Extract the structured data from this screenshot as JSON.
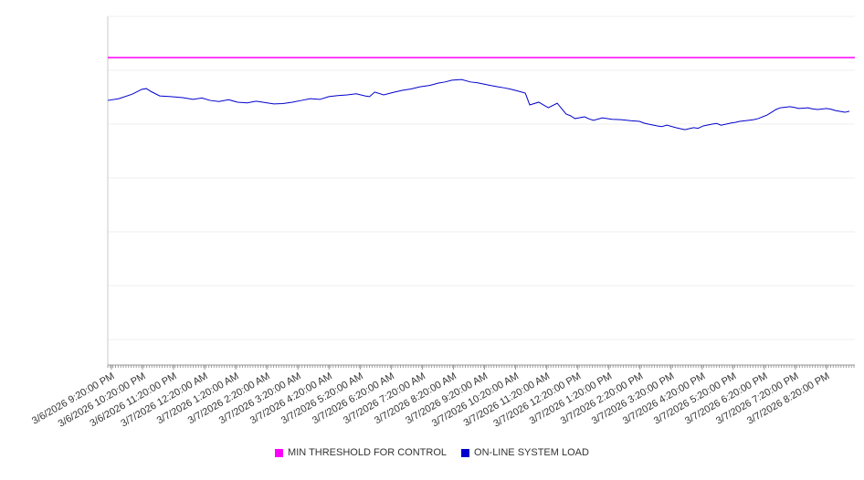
{
  "chart": {
    "background": "#ffffff",
    "axis_color": "#9a9a9a",
    "y_axis_color": "#c8c8c8",
    "grid_color": "#efefef",
    "label_color": "#333333"
  },
  "chart_data": {
    "type": "line",
    "title": "",
    "xlabel": "",
    "ylabel": "",
    "ylim": [
      0,
      100
    ],
    "grid": "horizontal",
    "legend_position": "bottom",
    "categories": [
      "3/6/2026 9:20:00 PM",
      "3/6/2026 10:20:00 PM",
      "3/6/2026 11:20:00 PM",
      "3/7/2026 12:20:00 AM",
      "3/7/2026 1:20:00 AM",
      "3/7/2026 2:20:00 AM",
      "3/7/2026 3:20:00 AM",
      "3/7/2026 4:20:00 AM",
      "3/7/2026 5:20:00 AM",
      "3/7/2026 6:20:00 AM",
      "3/7/2026 7:20:00 AM",
      "3/7/2026 8:20:00 AM",
      "3/7/2026 9:20:00 AM",
      "3/7/2026 10:20:00 AM",
      "3/7/2026 11:20:00 AM",
      "3/7/2026 12:20:00 PM",
      "3/7/2026 1:20:00 PM",
      "3/7/2026 2:20:00 PM",
      "3/7/2026 3:20:00 PM",
      "3/7/2026 4:20:00 PM",
      "3/7/2026 5:20:00 PM",
      "3/7/2026 6:20:00 PM",
      "3/7/2026 7:20:00 PM",
      "3/7/2026 8:20:00 PM"
    ],
    "series": [
      {
        "name": "MIN THRESHOLD FOR CONTROL",
        "color": "#ff00ff",
        "style": "constant",
        "value": 88.2
      },
      {
        "name": "ON-LINE SYSTEM LOAD",
        "color": "#0000cd",
        "style": "line",
        "points": [
          [
            0.0,
            75.9
          ],
          [
            0.015,
            76.4
          ],
          [
            0.033,
            77.7
          ],
          [
            0.046,
            79.1
          ],
          [
            0.052,
            79.3
          ],
          [
            0.058,
            78.5
          ],
          [
            0.07,
            77.2
          ],
          [
            0.085,
            77.0
          ],
          [
            0.101,
            76.7
          ],
          [
            0.115,
            76.2
          ],
          [
            0.127,
            76.6
          ],
          [
            0.138,
            75.9
          ],
          [
            0.15,
            75.6
          ],
          [
            0.163,
            76.1
          ],
          [
            0.175,
            75.4
          ],
          [
            0.188,
            75.2
          ],
          [
            0.2,
            75.7
          ],
          [
            0.212,
            75.3
          ],
          [
            0.224,
            74.9
          ],
          [
            0.236,
            75.0
          ],
          [
            0.249,
            75.4
          ],
          [
            0.261,
            75.9
          ],
          [
            0.273,
            76.4
          ],
          [
            0.286,
            76.2
          ],
          [
            0.298,
            77.0
          ],
          [
            0.31,
            77.3
          ],
          [
            0.323,
            77.5
          ],
          [
            0.335,
            77.8
          ],
          [
            0.347,
            77.2
          ],
          [
            0.353,
            77.0
          ],
          [
            0.36,
            78.3
          ],
          [
            0.372,
            77.5
          ],
          [
            0.385,
            78.2
          ],
          [
            0.397,
            78.8
          ],
          [
            0.409,
            79.2
          ],
          [
            0.421,
            79.8
          ],
          [
            0.434,
            80.2
          ],
          [
            0.446,
            80.9
          ],
          [
            0.455,
            81.2
          ],
          [
            0.464,
            81.7
          ],
          [
            0.477,
            81.9
          ],
          [
            0.489,
            81.2
          ],
          [
            0.498,
            81.0
          ],
          [
            0.507,
            80.6
          ],
          [
            0.516,
            80.2
          ],
          [
            0.526,
            79.8
          ],
          [
            0.535,
            79.5
          ],
          [
            0.544,
            79.1
          ],
          [
            0.553,
            78.6
          ],
          [
            0.563,
            78.0
          ],
          [
            0.569,
            74.6
          ],
          [
            0.581,
            75.4
          ],
          [
            0.594,
            73.8
          ],
          [
            0.606,
            75.1
          ],
          [
            0.618,
            72.0
          ],
          [
            0.624,
            71.5
          ],
          [
            0.63,
            70.7
          ],
          [
            0.643,
            71.2
          ],
          [
            0.649,
            70.6
          ],
          [
            0.655,
            70.2
          ],
          [
            0.667,
            70.9
          ],
          [
            0.68,
            70.5
          ],
          [
            0.692,
            70.4
          ],
          [
            0.705,
            70.1
          ],
          [
            0.717,
            69.9
          ],
          [
            0.723,
            69.4
          ],
          [
            0.729,
            69.1
          ],
          [
            0.741,
            68.6
          ],
          [
            0.747,
            68.4
          ],
          [
            0.754,
            68.8
          ],
          [
            0.766,
            68.1
          ],
          [
            0.772,
            67.8
          ],
          [
            0.778,
            67.5
          ],
          [
            0.79,
            68.1
          ],
          [
            0.796,
            67.9
          ],
          [
            0.803,
            68.6
          ],
          [
            0.815,
            69.1
          ],
          [
            0.821,
            69.3
          ],
          [
            0.827,
            68.8
          ],
          [
            0.84,
            69.4
          ],
          [
            0.846,
            69.6
          ],
          [
            0.852,
            69.9
          ],
          [
            0.864,
            70.2
          ],
          [
            0.871,
            70.4
          ],
          [
            0.877,
            70.7
          ],
          [
            0.889,
            71.7
          ],
          [
            0.895,
            72.5
          ],
          [
            0.901,
            73.3
          ],
          [
            0.907,
            73.8
          ],
          [
            0.92,
            74.1
          ],
          [
            0.926,
            73.9
          ],
          [
            0.932,
            73.6
          ],
          [
            0.944,
            73.8
          ],
          [
            0.95,
            73.5
          ],
          [
            0.957,
            73.3
          ],
          [
            0.969,
            73.6
          ],
          [
            0.975,
            73.4
          ],
          [
            0.981,
            73.0
          ],
          [
            0.994,
            72.5
          ],
          [
            1.0,
            72.8
          ]
        ]
      }
    ]
  }
}
